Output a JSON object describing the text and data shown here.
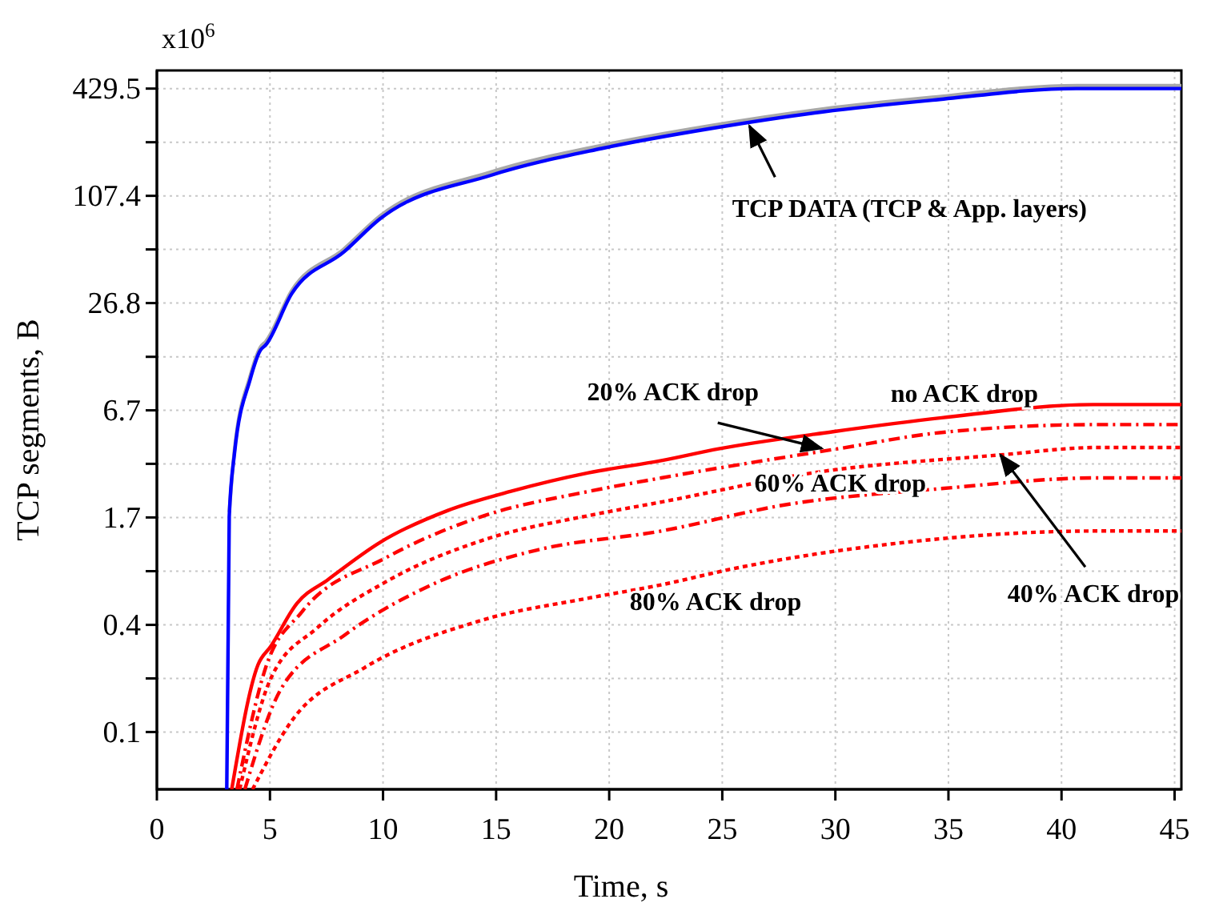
{
  "chart_data": {
    "type": "line",
    "xlabel": "Time, s",
    "ylabel": "TCP segments, B",
    "log": "y",
    "grid": true,
    "xlim": [
      0,
      45.3
    ],
    "xticks": [
      0,
      5,
      10,
      15,
      20,
      25,
      30,
      35,
      40,
      45
    ],
    "ylim": [
      0.05,
      543
    ],
    "yticks": [
      {
        "value": 0.1049,
        "label": "0.1"
      },
      {
        "value": 0.2097,
        "label": null
      },
      {
        "value": 0.419,
        "label": "0.4"
      },
      {
        "value": 0.839,
        "label": null
      },
      {
        "value": 1.68,
        "label": "1.7"
      },
      {
        "value": 3.36,
        "label": null
      },
      {
        "value": 6.71,
        "label": "6.7"
      },
      {
        "value": 13.4,
        "label": null
      },
      {
        "value": 26.84,
        "label": "26.8"
      },
      {
        "value": 53.7,
        "label": null
      },
      {
        "value": 107.37,
        "label": "107.4"
      },
      {
        "value": 214.7,
        "label": null
      },
      {
        "value": 429.5,
        "label": "429.5"
      }
    ],
    "annotations": [
      "x10$^{6}$",
      {
        "text": "TCP DATA (TCP & App. layers)",
        "x": 26.2,
        "y": 265
      },
      {
        "text": "20% ACK drop",
        "x": 29.4,
        "y": 4.1
      },
      {
        "text": "no ACK drop",
        "x": 35,
        "y": 6.1
      },
      {
        "text": "60% ACK drop",
        "x": 30.5,
        "y": 2.2
      },
      {
        "text": "40% ACK drop",
        "x": 37.3,
        "y": 3.77
      },
      {
        "text": "80% ACK drop",
        "x": 24.7,
        "y": 0.82
      }
    ],
    "series": [
      {
        "color": "#a8a8a8",
        "line_style": "solid",
        "x": [
          3.2,
          3.43,
          4.12,
          4.58,
          4.81,
          5.96,
          8.27,
          9.88,
          14.77,
          19.66,
          24.55,
          29.44,
          34.3,
          40.66,
          45.3
        ],
        "values": [
          1.8,
          4.0,
          10.4,
          15.2,
          16.3,
          31.5,
          54,
          83,
          146,
          206,
          267,
          330,
          384,
          446,
          446
        ]
      },
      {
        "color": "#0000ff",
        "line_style": "solid",
        "x": [
          3.09,
          3.2,
          3.43,
          4.12,
          4.58,
          4.81,
          5.96,
          8.27,
          9.88,
          14.77,
          19.66,
          24.55,
          29.44,
          34.3,
          40.66,
          45.3
        ],
        "values": [
          0.05,
          1.7,
          3.83,
          9.95,
          14.6,
          15.6,
          30.3,
          52,
          80,
          140,
          198,
          257,
          318,
          370,
          429.5,
          429.5
        ]
      },
      {
        "color": "#ff0000",
        "line_style": "solid",
        "x": [
          3.31,
          4.47,
          5.04,
          6.19,
          7.57,
          9.88,
          12.87,
          15.63,
          19.08,
          22.3,
          24.84,
          29.9,
          34.7,
          41.4,
          45.3
        ],
        "values": [
          0.05,
          0.25,
          0.318,
          0.553,
          0.753,
          1.22,
          1.84,
          2.35,
          2.99,
          3.5,
          4.08,
          5.09,
          6.09,
          7.23,
          7.23
        ]
      },
      {
        "color": "#ff0000",
        "line_style": "dashed",
        "x": [
          3.54,
          4.81,
          6.42,
          10.1,
          14.48,
          19.08,
          22.3,
          30.1,
          34.7,
          41.6,
          45.3
        ],
        "values": [
          0.05,
          0.241,
          0.497,
          0.994,
          1.72,
          2.35,
          2.8,
          4.08,
          5.04,
          5.58,
          5.58
        ]
      },
      {
        "color": "#ff0000",
        "line_style": "dotted",
        "x": [
          3.66,
          5.04,
          7.11,
          10.1,
          14.48,
          19.08,
          22.3,
          29.0,
          37.3,
          41.6,
          45.3
        ],
        "values": [
          0.05,
          0.21,
          0.405,
          0.728,
          1.26,
          1.72,
          2.05,
          2.99,
          3.77,
          4.15,
          4.15
        ]
      },
      {
        "color": "#ff0000",
        "line_style": "dashed",
        "x": [
          3.89,
          5.5,
          8.27,
          12.41,
          16.78,
          22.3,
          27.8,
          34.7,
          41.6,
          45.3
        ],
        "values": [
          0.05,
          0.184,
          0.365,
          0.728,
          1.1,
          1.41,
          1.98,
          2.44,
          2.8,
          2.8
        ]
      },
      {
        "color": "#ff0000",
        "line_style": "dotted",
        "x": [
          4.23,
          5.96,
          9.18,
          14.48,
          19.08,
          22.3,
          25.5,
          32.4,
          41.6,
          45.3
        ],
        "values": [
          0.05,
          0.121,
          0.241,
          0.449,
          0.592,
          0.703,
          0.867,
          1.19,
          1.41,
          1.41
        ]
      }
    ]
  }
}
